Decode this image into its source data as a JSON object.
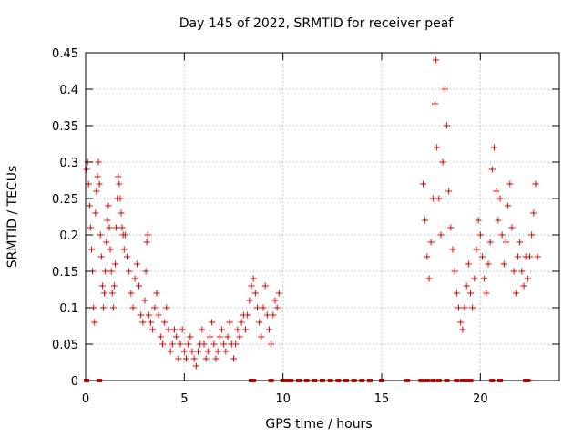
{
  "chart_data": {
    "type": "scatter",
    "title": "Day 145 of 2022, SRMTID for receiver peaf",
    "xlabel": "GPS time / hours",
    "ylabel": "SRMTID / TECUs",
    "xlim": [
      0,
      24
    ],
    "ylim": [
      0,
      0.45
    ],
    "x_ticks": [
      0,
      5,
      10,
      15,
      20
    ],
    "x_tick_labels": [
      "0",
      "5",
      "10",
      "15",
      "20"
    ],
    "y_ticks": [
      0,
      0.05,
      0.1,
      0.15,
      0.2,
      0.25,
      0.3,
      0.35,
      0.4,
      0.45
    ],
    "y_tick_labels": [
      "0",
      "0.05",
      "0.1",
      "0.15",
      "0.2",
      "0.25",
      "0.3",
      "0.35",
      "0.4",
      "0.45"
    ],
    "grid": true,
    "marker": "+",
    "color": "#e00000",
    "series": [
      {
        "name": "SRMTID",
        "points": [
          [
            0.05,
            0.29
          ],
          [
            0.1,
            0.3
          ],
          [
            0.15,
            0.27
          ],
          [
            0.2,
            0.24
          ],
          [
            0.25,
            0.21
          ],
          [
            0.3,
            0.18
          ],
          [
            0.35,
            0.15
          ],
          [
            0.4,
            0.1
          ],
          [
            0.45,
            0.08
          ],
          [
            0.5,
            0.23
          ],
          [
            0.55,
            0.26
          ],
          [
            0.6,
            0.28
          ],
          [
            0.65,
            0.3
          ],
          [
            0.7,
            0.27
          ],
          [
            0.75,
            0.2
          ],
          [
            0.8,
            0.17
          ],
          [
            0.85,
            0.13
          ],
          [
            0.9,
            0.1
          ],
          [
            0.95,
            0.12
          ],
          [
            1.0,
            0.15
          ],
          [
            1.05,
            0.19
          ],
          [
            1.1,
            0.22
          ],
          [
            1.15,
            0.24
          ],
          [
            1.2,
            0.21
          ],
          [
            1.25,
            0.18
          ],
          [
            1.3,
            0.15
          ],
          [
            1.35,
            0.12
          ],
          [
            1.4,
            0.1
          ],
          [
            1.45,
            0.13
          ],
          [
            1.5,
            0.16
          ],
          [
            1.55,
            0.21
          ],
          [
            1.6,
            0.25
          ],
          [
            1.65,
            0.28
          ],
          [
            1.7,
            0.27
          ],
          [
            1.75,
            0.25
          ],
          [
            1.8,
            0.23
          ],
          [
            1.85,
            0.21
          ],
          [
            1.9,
            0.2
          ],
          [
            1.95,
            0.18
          ],
          [
            2.0,
            0.2
          ],
          [
            2.1,
            0.17
          ],
          [
            2.2,
            0.15
          ],
          [
            2.3,
            0.12
          ],
          [
            2.4,
            0.1
          ],
          [
            2.5,
            0.14
          ],
          [
            2.6,
            0.16
          ],
          [
            2.7,
            0.13
          ],
          [
            2.8,
            0.09
          ],
          [
            2.9,
            0.08
          ],
          [
            3.0,
            0.11
          ],
          [
            3.05,
            0.15
          ],
          [
            3.1,
            0.19
          ],
          [
            3.15,
            0.2
          ],
          [
            3.2,
            0.09
          ],
          [
            3.3,
            0.08
          ],
          [
            3.4,
            0.07
          ],
          [
            3.5,
            0.1
          ],
          [
            3.6,
            0.12
          ],
          [
            3.7,
            0.09
          ],
          [
            3.8,
            0.06
          ],
          [
            3.9,
            0.05
          ],
          [
            4.0,
            0.08
          ],
          [
            4.1,
            0.1
          ],
          [
            4.2,
            0.07
          ],
          [
            4.3,
            0.04
          ],
          [
            4.4,
            0.05
          ],
          [
            4.5,
            0.07
          ],
          [
            4.6,
            0.06
          ],
          [
            4.7,
            0.03
          ],
          [
            4.8,
            0.05
          ],
          [
            4.9,
            0.07
          ],
          [
            5.0,
            0.04
          ],
          [
            5.1,
            0.03
          ],
          [
            5.2,
            0.05
          ],
          [
            5.3,
            0.06
          ],
          [
            5.4,
            0.04
          ],
          [
            5.5,
            0.03
          ],
          [
            5.6,
            0.02
          ],
          [
            5.7,
            0.04
          ],
          [
            5.8,
            0.05
          ],
          [
            5.9,
            0.07
          ],
          [
            6.0,
            0.05
          ],
          [
            6.1,
            0.03
          ],
          [
            6.2,
            0.04
          ],
          [
            6.3,
            0.06
          ],
          [
            6.4,
            0.08
          ],
          [
            6.5,
            0.05
          ],
          [
            6.6,
            0.03
          ],
          [
            6.7,
            0.04
          ],
          [
            6.8,
            0.06
          ],
          [
            6.9,
            0.07
          ],
          [
            7.0,
            0.05
          ],
          [
            7.1,
            0.04
          ],
          [
            7.2,
            0.06
          ],
          [
            7.3,
            0.08
          ],
          [
            7.4,
            0.05
          ],
          [
            7.5,
            0.03
          ],
          [
            7.6,
            0.05
          ],
          [
            7.7,
            0.07
          ],
          [
            7.8,
            0.06
          ],
          [
            7.9,
            0.08
          ],
          [
            8.0,
            0.09
          ],
          [
            8.1,
            0.07
          ],
          [
            8.2,
            0.09
          ],
          [
            8.3,
            0.11
          ],
          [
            8.4,
            0.13
          ],
          [
            8.5,
            0.14
          ],
          [
            8.6,
            0.12
          ],
          [
            8.7,
            0.1
          ],
          [
            8.8,
            0.08
          ],
          [
            8.9,
            0.06
          ],
          [
            9.0,
            0.1
          ],
          [
            9.1,
            0.13
          ],
          [
            9.2,
            0.09
          ],
          [
            9.3,
            0.07
          ],
          [
            9.4,
            0.05
          ],
          [
            9.5,
            0.09
          ],
          [
            9.6,
            0.11
          ],
          [
            9.7,
            0.1
          ],
          [
            9.8,
            0.12
          ],
          [
            17.1,
            0.27
          ],
          [
            17.2,
            0.22
          ],
          [
            17.3,
            0.17
          ],
          [
            17.4,
            0.14
          ],
          [
            17.5,
            0.19
          ],
          [
            17.6,
            0.25
          ],
          [
            17.7,
            0.38
          ],
          [
            17.75,
            0.44
          ],
          [
            17.8,
            0.32
          ],
          [
            17.9,
            0.25
          ],
          [
            18.0,
            0.2
          ],
          [
            18.1,
            0.3
          ],
          [
            18.2,
            0.4
          ],
          [
            18.3,
            0.35
          ],
          [
            18.4,
            0.26
          ],
          [
            18.5,
            0.21
          ],
          [
            18.6,
            0.18
          ],
          [
            18.7,
            0.15
          ],
          [
            18.8,
            0.12
          ],
          [
            18.9,
            0.1
          ],
          [
            19.0,
            0.08
          ],
          [
            19.1,
            0.07
          ],
          [
            19.2,
            0.1
          ],
          [
            19.3,
            0.13
          ],
          [
            19.4,
            0.16
          ],
          [
            19.5,
            0.12
          ],
          [
            19.6,
            0.1
          ],
          [
            19.7,
            0.14
          ],
          [
            19.8,
            0.18
          ],
          [
            19.9,
            0.22
          ],
          [
            20.0,
            0.2
          ],
          [
            20.1,
            0.17
          ],
          [
            20.2,
            0.14
          ],
          [
            20.3,
            0.12
          ],
          [
            20.4,
            0.16
          ],
          [
            20.5,
            0.19
          ],
          [
            20.6,
            0.29
          ],
          [
            20.7,
            0.32
          ],
          [
            20.8,
            0.26
          ],
          [
            20.9,
            0.22
          ],
          [
            21.0,
            0.25
          ],
          [
            21.1,
            0.2
          ],
          [
            21.2,
            0.16
          ],
          [
            21.3,
            0.19
          ],
          [
            21.4,
            0.24
          ],
          [
            21.5,
            0.27
          ],
          [
            21.6,
            0.21
          ],
          [
            21.7,
            0.15
          ],
          [
            21.8,
            0.12
          ],
          [
            21.9,
            0.17
          ],
          [
            22.0,
            0.19
          ],
          [
            22.1,
            0.15
          ],
          [
            22.2,
            0.13
          ],
          [
            22.3,
            0.17
          ],
          [
            22.4,
            0.14
          ],
          [
            22.5,
            0.17
          ],
          [
            22.6,
            0.2
          ],
          [
            22.7,
            0.23
          ],
          [
            22.8,
            0.27
          ],
          [
            22.9,
            0.17
          ]
        ],
        "zero_points": [
          0.05,
          0.7,
          8.4,
          8.5,
          9.4,
          10.0,
          10.2,
          10.4,
          10.8,
          11.2,
          11.6,
          12.0,
          12.4,
          12.8,
          13.2,
          13.6,
          14.0,
          14.4,
          15.0,
          16.3,
          17.0,
          17.3,
          17.6,
          17.9,
          18.3,
          18.8,
          19.1,
          19.3,
          19.5,
          20.6,
          21.0,
          22.3,
          22.4
        ]
      }
    ]
  }
}
